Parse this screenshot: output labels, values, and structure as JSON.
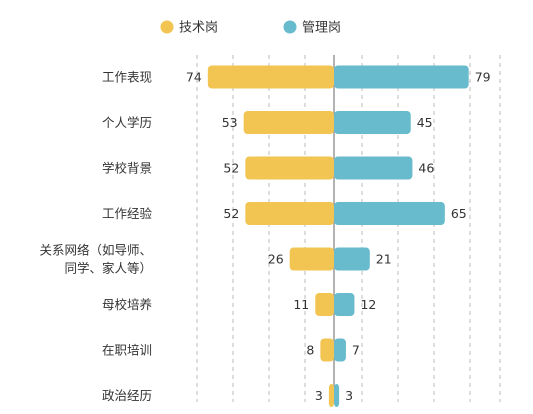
{
  "chart_data": {
    "type": "bar",
    "orientation": "horizontal-diverging",
    "categories": [
      [
        "工作表现"
      ],
      [
        "个人学历"
      ],
      [
        "学校背景"
      ],
      [
        "工作经验"
      ],
      [
        "关系网络（如导师、",
        "同学、家人等）"
      ],
      [
        "母校培养"
      ],
      [
        "在职培训"
      ],
      [
        "政治经历"
      ]
    ],
    "series": [
      {
        "name": "技术岗",
        "side": "left",
        "color": "#F2C552",
        "values": [
          74,
          53,
          52,
          52,
          26,
          11,
          8,
          3
        ]
      },
      {
        "name": "管理岗",
        "side": "right",
        "color": "#67BBCD",
        "values": [
          79,
          45,
          46,
          65,
          21,
          12,
          7,
          3
        ]
      }
    ],
    "xlim": [
      -100,
      100
    ],
    "grid": true,
    "legend_position": "top-center",
    "title": "",
    "xlabel": "",
    "ylabel": ""
  },
  "colors": {
    "grid": "#BBBBBB",
    "axis": "#999999",
    "text": "#333333"
  }
}
